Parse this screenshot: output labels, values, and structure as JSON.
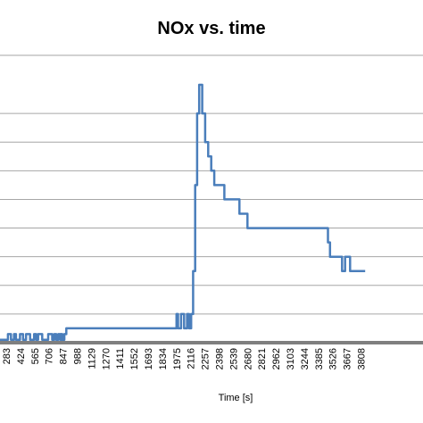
{
  "chart_data": {
    "type": "line",
    "title": "NOx vs. time",
    "xlabel": "Time [s]",
    "ylabel": "",
    "x_tick_labels": [
      "283",
      "424",
      "565",
      "706",
      "847",
      "988",
      "1129",
      "1270",
      "1411",
      "1552",
      "1693",
      "1834",
      "1975",
      "2116",
      "2257",
      "2398",
      "2539",
      "2680",
      "2821",
      "2962",
      "3103",
      "3244",
      "3385",
      "3526",
      "3667",
      "3808"
    ],
    "ylim": [
      0,
      9
    ],
    "grid": true,
    "series": [
      {
        "color": "#4a7ebb",
        "x": [
          200,
          300,
          330,
          360,
          380,
          420,
          450,
          480,
          520,
          560,
          580,
          600,
          640,
          700,
          740,
          760,
          780,
          800,
          820,
          830,
          840,
          860,
          880,
          1960,
          1975,
          1990,
          2020,
          2050,
          2080,
          2100,
          2120,
          2140,
          2160,
          2180,
          2200,
          2215,
          2230,
          2260,
          2290,
          2320,
          2350,
          2380,
          2450,
          2500,
          2600,
          2680,
          2750,
          3100,
          3400,
          3480,
          3500,
          3600,
          3620,
          3650,
          3700,
          3850
        ],
        "y": [
          0.1,
          0.3,
          0.1,
          0.3,
          0.1,
          0.3,
          0.1,
          0.3,
          0.1,
          0.3,
          0.1,
          0.3,
          0.1,
          0.3,
          0.1,
          0.3,
          0.1,
          0.3,
          0.1,
          0.3,
          0.1,
          0.3,
          0.5,
          0.5,
          1.0,
          0.5,
          1.0,
          0.5,
          1.0,
          0.5,
          1.0,
          2.5,
          5.5,
          8.0,
          9.0,
          9.0,
          8.0,
          7.0,
          6.5,
          6.0,
          5.5,
          5.5,
          5.0,
          5.0,
          4.5,
          4.0,
          4.0,
          4.0,
          4.0,
          3.5,
          3.0,
          3.0,
          2.5,
          3.0,
          2.5,
          2.5
        ]
      }
    ]
  }
}
